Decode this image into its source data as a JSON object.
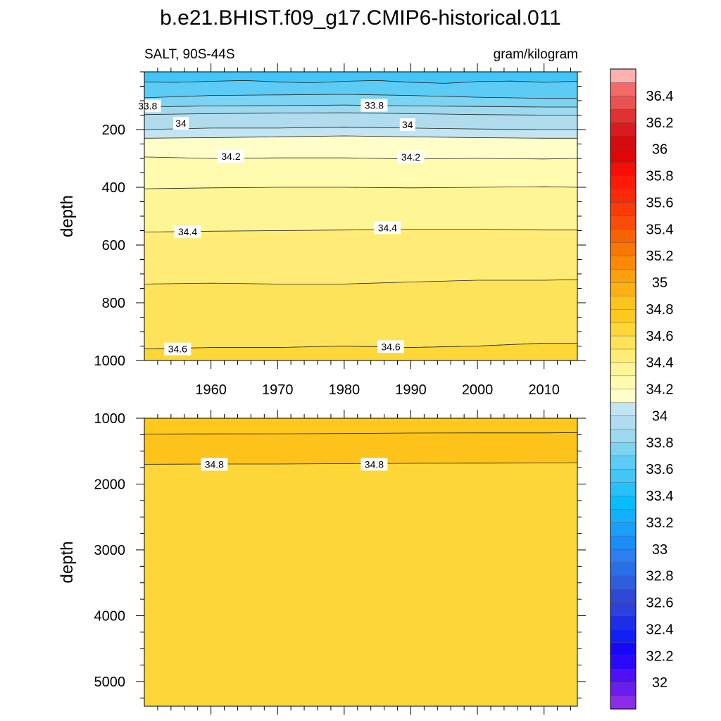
{
  "title": "b.e21.BHIST.f09_g17.CMIP6-historical.011",
  "chart_data": {
    "type": "heatmap",
    "variable_label": "SALT, 90S-44S",
    "units_label": "gram/kilogram",
    "x": {
      "range": [
        1950,
        2015
      ],
      "ticks": [
        1960,
        1970,
        1980,
        1990,
        2000,
        2010
      ],
      "tick_labels": [
        "1960",
        "1970",
        "1980",
        "1990",
        "2000",
        "2010"
      ]
    },
    "panels": [
      {
        "name": "upper",
        "ylabel": "depth",
        "ylim": [
          0,
          1000
        ],
        "y_ticks": [
          200,
          400,
          600,
          800,
          1000
        ],
        "y_tick_labels": [
          "200",
          "400",
          "600",
          "800",
          "1000"
        ],
        "background_color": "#fde35a",
        "contours": [
          {
            "level": 33.6,
            "color": "#44c5f8",
            "x": [
              1950,
              1955,
              1960,
              1965,
              1970,
              1975,
              1980,
              1985,
              1990,
              1995,
              2000,
              2005,
              2010,
              2015
            ],
            "depth": [
              35,
              36,
              33,
              30,
              35,
              38,
              33,
              30,
              36,
              40,
              34,
              32,
              36,
              33
            ]
          },
          {
            "level": 33.7,
            "color": "#5ccbf5",
            "x": [
              1950,
              1960,
              1970,
              1980,
              1990,
              2000,
              2010,
              2015
            ],
            "depth": [
              90,
              82,
              80,
              78,
              82,
              88,
              92,
              92
            ]
          },
          {
            "level": 33.8,
            "color": "#7dd3f2",
            "x": [
              1950,
              1960,
              1970,
              1980,
              1990,
              2000,
              2010,
              2015
            ],
            "depth": [
              122,
              118,
              117,
              115,
              118,
              120,
              122,
              122
            ]
          },
          {
            "level": 33.9,
            "color": "#9dd9ef",
            "x": [
              1950,
              1960,
              1970,
              1980,
              1990,
              2000,
              2010,
              2015
            ],
            "depth": [
              148,
              145,
              143,
              142,
              145,
              148,
              150,
              150
            ]
          },
          {
            "level": 34.0,
            "color": "#b1dcee",
            "x": [
              1950,
              1960,
              1970,
              1980,
              1990,
              2000,
              2010,
              2015
            ],
            "depth": [
              200,
              195,
              195,
              192,
              195,
              198,
              200,
              200
            ]
          },
          {
            "level": 34.1,
            "color": "#c3e5f2",
            "x": [
              1950,
              1960,
              1970,
              1980,
              1990,
              2000,
              2010,
              2015
            ],
            "depth": [
              230,
              228,
              225,
              222,
              225,
              228,
              230,
              230
            ]
          },
          {
            "level": 34.2,
            "color": "#fffec8",
            "x": [
              1950,
              1960,
              1970,
              1980,
              1990,
              2000,
              2010,
              2015
            ],
            "depth": [
              295,
              300,
              298,
              298,
              302,
              300,
              302,
              300
            ]
          },
          {
            "level": 34.3,
            "color": "#fffbae",
            "x": [
              1950,
              1960,
              1970,
              1980,
              1990,
              2000,
              2010,
              2015
            ],
            "depth": [
              405,
              402,
              400,
              400,
              402,
              400,
              398,
              400
            ]
          },
          {
            "level": 34.4,
            "color": "#fef595",
            "x": [
              1950,
              1960,
              1970,
              1980,
              1990,
              2000,
              2010,
              2015
            ],
            "depth": [
              555,
              552,
              550,
              548,
              545,
              545,
              548,
              548
            ]
          },
          {
            "level": 34.5,
            "color": "#feec77",
            "x": [
              1950,
              1960,
              1970,
              1980,
              1990,
              2000,
              2010,
              2015
            ],
            "depth": [
              735,
              732,
              735,
              735,
              728,
              722,
              722,
              720
            ]
          },
          {
            "level": 34.6,
            "color": "#fde35a",
            "x": [
              1950,
              1960,
              1970,
              1980,
              1990,
              2000,
              2010,
              2015
            ],
            "depth": [
              960,
              955,
              955,
              950,
              955,
              950,
              940,
              940
            ]
          }
        ],
        "deep_fill_color": "#fdd737",
        "contour_labels": [
          {
            "text": "33.8",
            "x": 1950.5,
            "depth": 118
          },
          {
            "text": "33.8",
            "x": 1984.5,
            "depth": 116
          },
          {
            "text": "34",
            "x": 1955.5,
            "depth": 178
          },
          {
            "text": "34",
            "x": 1989.5,
            "depth": 183
          },
          {
            "text": "34.2",
            "x": 1963,
            "depth": 293
          },
          {
            "text": "34.2",
            "x": 1990,
            "depth": 295
          },
          {
            "text": "34.4",
            "x": 1956.5,
            "depth": 554
          },
          {
            "text": "34.4",
            "x": 1986.5,
            "depth": 540
          },
          {
            "text": "34.6",
            "x": 1955,
            "depth": 960
          },
          {
            "text": "34.6",
            "x": 1987,
            "depth": 952
          }
        ]
      },
      {
        "name": "lower",
        "ylabel": "depth",
        "ylim": [
          1000,
          5375
        ],
        "y_ticks": [
          1000,
          2000,
          3000,
          4000,
          5000
        ],
        "y_tick_labels": [
          "1000",
          "2000",
          "3000",
          "4000",
          "5000"
        ],
        "background_color": "#fdd737",
        "contours": [
          {
            "level": 34.7,
            "color": "#fec81d",
            "x": [
              1950,
              1960,
              1970,
              1980,
              1990,
              2000,
              2010,
              2015
            ],
            "depth": [
              1240,
              1238,
              1236,
              1232,
              1225,
              1222,
              1222,
              1218
            ]
          },
          {
            "level": 34.8,
            "color": "#fec31b",
            "x": [
              1950,
              1960,
              1970,
              1980,
              1990,
              2000,
              2010,
              2015
            ],
            "depth": [
              1700,
              1695,
              1695,
              1690,
              1685,
              1682,
              1680,
              1675
            ]
          }
        ],
        "contour_labels": [
          {
            "text": "34.8",
            "x": 1960.5,
            "depth": 1700
          },
          {
            "text": "34.8",
            "x": 1984.5,
            "depth": 1700
          }
        ]
      }
    ],
    "colorbar": {
      "levels": [
        31.9,
        32.0,
        32.1,
        32.2,
        32.3,
        32.4,
        32.5,
        32.6,
        32.7,
        32.8,
        32.9,
        33.0,
        33.1,
        33.2,
        33.3,
        33.4,
        33.5,
        33.6,
        33.7,
        33.8,
        33.9,
        34.0,
        34.1,
        34.2,
        34.3,
        34.4,
        34.5,
        34.6,
        34.7,
        34.8,
        34.9,
        35.0,
        35.1,
        35.2,
        35.3,
        35.4,
        35.5,
        35.6,
        35.7,
        35.8,
        35.9,
        36.0,
        36.1,
        36.2,
        36.3,
        36.4,
        36.5
      ],
      "colors": [
        "#8c2ce8",
        "#6b1df0",
        "#4f10f8",
        "#2a08fa",
        "#1808fb",
        "#1020f7",
        "#1c2ee6",
        "#2c40dc",
        "#2f48d8",
        "#2d5ee0",
        "#2a6ee8",
        "#2b7ff0",
        "#1b8df6",
        "#1aa0fa",
        "#14b0fd",
        "#08bdfe",
        "#28c0fa",
        "#44c5f8",
        "#5ccbf5",
        "#7dd3f2",
        "#9dd9ef",
        "#b1dcee",
        "#c3e5f2",
        "#fffec8",
        "#fffbae",
        "#fef595",
        "#feec77",
        "#fde35a",
        "#fdd737",
        "#fec81d",
        "#fec31b",
        "#fcb013",
        "#fca00c",
        "#fb8906",
        "#fa7603",
        "#f96202",
        "#fa4b08",
        "#fb3a05",
        "#fb2a04",
        "#fd1a06",
        "#f80c08",
        "#e00606",
        "#d40c10",
        "#d61c20",
        "#e03232",
        "#ea5252",
        "#f26a6a",
        "#fcb0b0"
      ],
      "tick_values": [
        32.0,
        32.2,
        32.4,
        32.6,
        32.8,
        33.0,
        33.2,
        33.4,
        33.6,
        33.8,
        34.0,
        34.2,
        34.4,
        34.6,
        34.8,
        35.0,
        35.2,
        35.4,
        35.6,
        35.8,
        36.0,
        36.2,
        36.4
      ],
      "tick_labels": [
        "32",
        "32.2",
        "32.4",
        "32.6",
        "32.8",
        "33",
        "33.2",
        "33.4",
        "33.6",
        "33.8",
        "34",
        "34.2",
        "34.4",
        "34.6",
        "34.8",
        "35",
        "35.2",
        "35.4",
        "35.6",
        "35.8",
        "36",
        "36.2",
        "36.4"
      ]
    }
  }
}
